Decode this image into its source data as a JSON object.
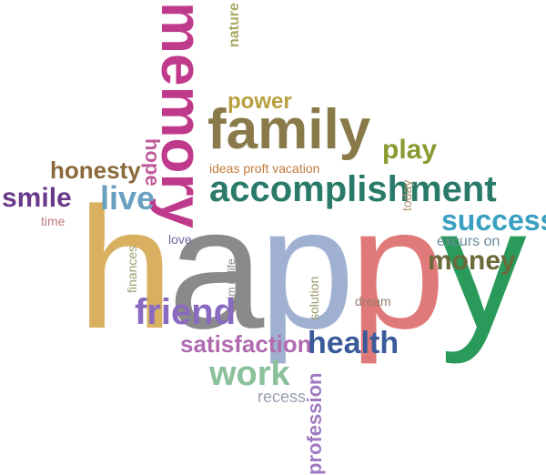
{
  "words": {
    "happy": "happy",
    "memory": "memory",
    "family": "family",
    "accomplishment": "accomplishment",
    "play": "play",
    "power": "power",
    "nature": "nature",
    "hope": "hope",
    "honesty": "honesty",
    "ideas": "ideas",
    "profit": "proft",
    "vacation": "vacation",
    "smile": "smile",
    "live": "live",
    "time": "time",
    "love": "love",
    "aim_in_life": "aim in life",
    "finances": "finances",
    "friend": "friend",
    "solution": "solution",
    "dream": "dream",
    "satisfaction": "satisfaction",
    "health": "health",
    "work": "work",
    "recess": "recess",
    "profession": "profession",
    "today": "today",
    "success": "success",
    "excursion": "excurs on",
    "money": "money"
  },
  "colors": {
    "memory": "#c03a8c",
    "family": "#8a7a4a",
    "accomplishment": "#2a7a6a",
    "play": "#8a9a30",
    "power": "#b8a040",
    "nature": "#a8a860",
    "hope": "#c05a9a",
    "honesty": "#8a6a3a",
    "smile": "#6a3a8a",
    "live": "#6aa0c0",
    "time": "#c07a7a",
    "happy_h": "#d8b060",
    "happy_a": "#8a8a8a",
    "happy_p1": "#a0b0d0",
    "happy_p2": "#e07a7a",
    "happy_y": "#2a9a5a",
    "friend": "#8a6ac0",
    "satisfaction": "#b06ab0",
    "health": "#3a5a9a",
    "work": "#8ac09a",
    "recess": "#9aa0b0",
    "profession": "#a07ac0",
    "success": "#3aa0c0",
    "money": "#6a6a3a",
    "excursion": "#6a8a9a",
    "dream": "#9a7a6a",
    "solution": "#9a9a6a",
    "love": "#6a6aa0",
    "aim_in_life": "#8a8a8a",
    "finances": "#9aa070",
    "today": "#b09070",
    "ideas": "#c07a3a"
  }
}
